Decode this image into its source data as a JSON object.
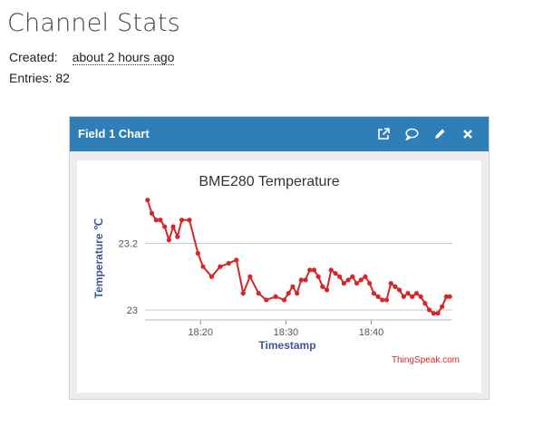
{
  "page": {
    "title": "Channel Stats",
    "created_label": "Created:",
    "created_value": "about 2 hours ago",
    "entries_label": "Entries:",
    "entries_value": "82"
  },
  "widget": {
    "title": "Field 1 Chart",
    "icons": [
      "external-link-icon",
      "comment-icon",
      "pencil-icon",
      "close-icon"
    ]
  },
  "colors": {
    "header": "#2f7eb8",
    "line": "#d62728",
    "axis_label": "#3b5998",
    "credit": "#d62728"
  },
  "chart_data": {
    "type": "line",
    "title": "BME280 Temperature",
    "xlabel": "Timestamp",
    "ylabel": "Temperature ℃",
    "credit": "ThingSpeak.com",
    "x_ticks": [
      "18:20",
      "18:30",
      "18:40"
    ],
    "y_ticks": [
      "23",
      "23.2"
    ],
    "x_tick_minutes": [
      20,
      30,
      40
    ],
    "y_tick_values": [
      23,
      23.2
    ],
    "xlim": [
      13.5,
      49.5
    ],
    "ylim": [
      22.97,
      23.34
    ],
    "grid": true,
    "series": [
      {
        "x": [
          13.8,
          14.3,
          14.8,
          15.3,
          15.8,
          16.3,
          16.8,
          17.3,
          17.8,
          18.7,
          19.7,
          20.3,
          21.3,
          22.3,
          23.3,
          24.2,
          25.0,
          25.8,
          26.8,
          27.7,
          28.8,
          29.8,
          30.3,
          30.8,
          31.3,
          31.8,
          32.3,
          32.8,
          33.3,
          33.8,
          34.3,
          34.8,
          35.3,
          35.8,
          36.3,
          36.8,
          37.3,
          37.8,
          38.3,
          38.8,
          39.3,
          39.8,
          40.3,
          40.8,
          41.3,
          41.8,
          42.3,
          42.8,
          43.3,
          43.8,
          44.3,
          44.8,
          45.3,
          45.8,
          46.3,
          46.8,
          47.3,
          47.8,
          48.3,
          48.8,
          49.2
        ],
        "y": [
          23.33,
          23.29,
          23.27,
          23.27,
          23.25,
          23.21,
          23.25,
          23.22,
          23.27,
          23.27,
          23.17,
          23.13,
          23.1,
          23.13,
          23.14,
          23.15,
          23.05,
          23.1,
          23.05,
          23.03,
          23.04,
          23.03,
          23.05,
          23.07,
          23.05,
          23.09,
          23.09,
          23.12,
          23.12,
          23.1,
          23.07,
          23.06,
          23.12,
          23.11,
          23.1,
          23.08,
          23.09,
          23.1,
          23.08,
          23.09,
          23.1,
          23.08,
          23.05,
          23.04,
          23.03,
          23.03,
          23.08,
          23.07,
          23.06,
          23.04,
          23.05,
          23.04,
          23.05,
          23.04,
          23.02,
          23,
          22.99,
          22.99,
          23.01,
          23.04,
          23.04
        ]
      }
    ]
  }
}
